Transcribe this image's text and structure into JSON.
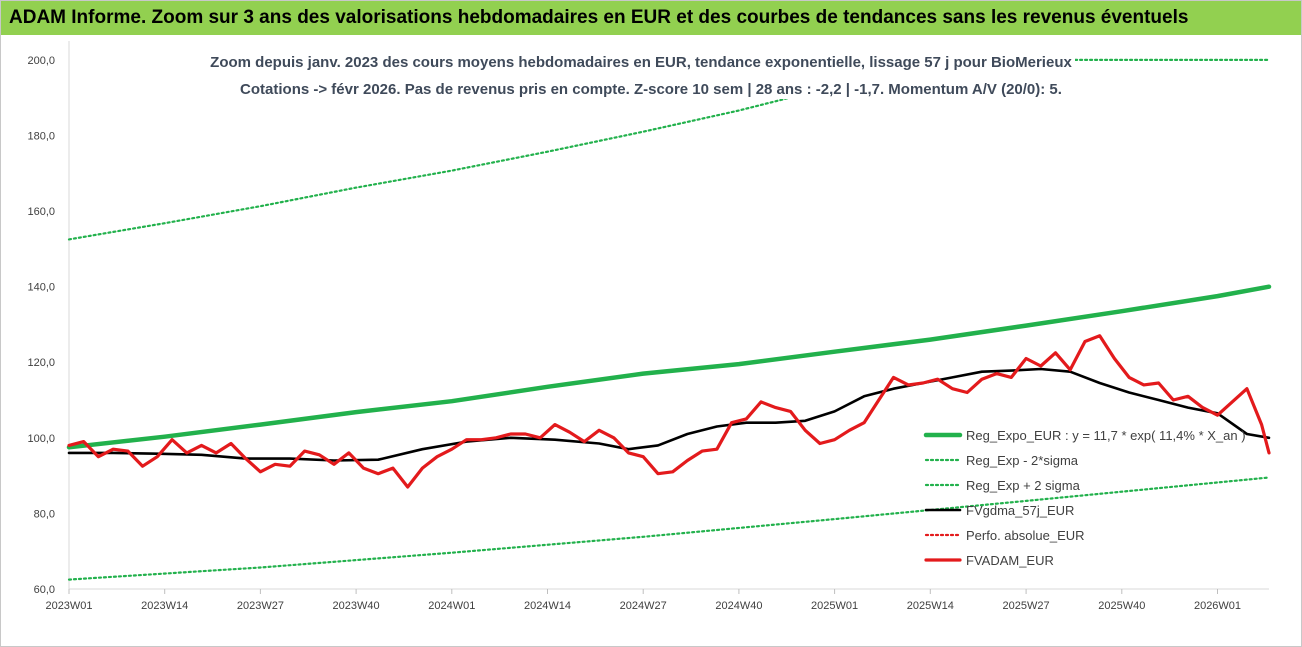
{
  "banner": {
    "title": "ADAM Informe. Zoom sur 3 ans des valorisations hebdomadaires en EUR et des courbes de tendances sans les revenus éventuels"
  },
  "colors": {
    "banner_bg": "#92d050",
    "trend_green": "#22b14c",
    "black_line": "#000000",
    "red_line": "#e31a1c"
  },
  "chart_data": {
    "type": "line",
    "title_line1": "Zoom depuis janv. 2023 des cours moyens hebdomadaires en EUR, tendance exponentielle, lissage 57 j pour BioMerieux",
    "title_line2": "Cotations -> févr 2026.  Pas de revenus pris en compte. Z-score 10 sem | 28 ans : -2,2 | -1,7. Momentum A/V (20/0): 5.",
    "x_tick_labels": [
      "2023W01",
      "2023W14",
      "2023W27",
      "2023W40",
      "2024W01",
      "2024W14",
      "2024W27",
      "2024W40",
      "2025W01",
      "2025W14",
      "2025W27",
      "2025W40",
      "2026W01"
    ],
    "x_tick_weeks": [
      0,
      13,
      26,
      39,
      52,
      65,
      78,
      91,
      104,
      117,
      130,
      143,
      156
    ],
    "x_range_weeks": [
      0,
      163
    ],
    "y_ticks": [
      "60,0",
      "80,0",
      "100,0",
      "120,0",
      "140,0",
      "160,0",
      "180,0",
      "200,0"
    ],
    "ylim": [
      60,
      205
    ],
    "grid": false,
    "legend_position": "right",
    "series": [
      {
        "name": "Reg_Expo_EUR : y = 11,7 * exp( 11,4% * X_an )",
        "style": "thick",
        "x": [
          0,
          13,
          26,
          39,
          52,
          65,
          78,
          91,
          104,
          117,
          130,
          143,
          156,
          163
        ],
        "values": [
          97.5,
          100.3,
          103.5,
          106.8,
          109.7,
          113.5,
          117,
          119.5,
          122.8,
          126,
          129.7,
          133.5,
          137.5,
          140
        ]
      },
      {
        "name": "Reg_Exp - 2*sigma",
        "style": "dotted",
        "x": [
          0,
          26,
          52,
          78,
          104,
          130,
          163
        ],
        "values": [
          62.5,
          65.7,
          69.6,
          73.8,
          78.5,
          83.3,
          89.5
        ]
      },
      {
        "name": "Reg_Exp + 2 sigma",
        "style": "dotted",
        "x": [
          0,
          13,
          26,
          39,
          52,
          65,
          78,
          91,
          104,
          109,
          163
        ],
        "values": [
          152.5,
          156.8,
          161.3,
          166.2,
          170.7,
          175.7,
          181,
          186.6,
          193,
          200,
          200
        ]
      },
      {
        "name": "FVgdma_57j_EUR",
        "style": "solid",
        "x": [
          0,
          6,
          12,
          18,
          24,
          30,
          36,
          42,
          48,
          54,
          60,
          66,
          72,
          76,
          80,
          84,
          88,
          92,
          96,
          100,
          104,
          108,
          112,
          116,
          120,
          124,
          128,
          132,
          136,
          140,
          144,
          148,
          152,
          156,
          160,
          163
        ],
        "values": [
          96,
          96,
          95.8,
          95.5,
          94.5,
          94.5,
          94,
          94.2,
          97,
          99,
          100,
          99.5,
          98.5,
          97,
          98,
          101,
          103,
          104,
          104,
          104.5,
          107,
          111,
          113,
          114.5,
          116,
          117.5,
          117.8,
          118.2,
          117.5,
          114.5,
          112,
          110,
          108,
          106.5,
          101,
          100
        ]
      },
      {
        "name": "Perfo. absolue_EUR",
        "style": "dotted",
        "x": [],
        "values": []
      },
      {
        "name": "FVADAM_EUR",
        "style": "solid",
        "x": [
          0,
          2,
          4,
          6,
          8,
          10,
          12,
          14,
          16,
          18,
          20,
          22,
          24,
          26,
          28,
          30,
          32,
          34,
          36,
          38,
          40,
          42,
          44,
          46,
          48,
          50,
          52,
          54,
          56,
          58,
          60,
          62,
          64,
          66,
          68,
          70,
          72,
          74,
          76,
          78,
          80,
          82,
          84,
          86,
          88,
          90,
          92,
          94,
          96,
          98,
          100,
          102,
          104,
          106,
          108,
          110,
          112,
          114,
          116,
          118,
          120,
          122,
          124,
          126,
          128,
          130,
          132,
          134,
          136,
          138,
          140,
          142,
          144,
          146,
          148,
          150,
          152,
          154,
          156,
          158,
          160,
          162,
          163
        ],
        "values": [
          98,
          99,
          95,
          97,
          96.5,
          92.5,
          95,
          99.5,
          96,
          98,
          96,
          98.5,
          94.5,
          91,
          93,
          92.5,
          96.5,
          95.5,
          93,
          96,
          92,
          90.5,
          92,
          87,
          92,
          95,
          97,
          99.5,
          99.5,
          100,
          101,
          101,
          100,
          103.5,
          101.5,
          99,
          102,
          100,
          96,
          95,
          90.5,
          91,
          94,
          96.5,
          97,
          104,
          105,
          109.5,
          108,
          107,
          102,
          98.5,
          99.5,
          102,
          104,
          110,
          116,
          114,
          114.5,
          115.5,
          113,
          112,
          115.5,
          117,
          116,
          121,
          119,
          122.5,
          118,
          125.5,
          127,
          121,
          116,
          114,
          114.5,
          110,
          111,
          108,
          106,
          109.5,
          113,
          103.5,
          96
        ]
      }
    ]
  }
}
